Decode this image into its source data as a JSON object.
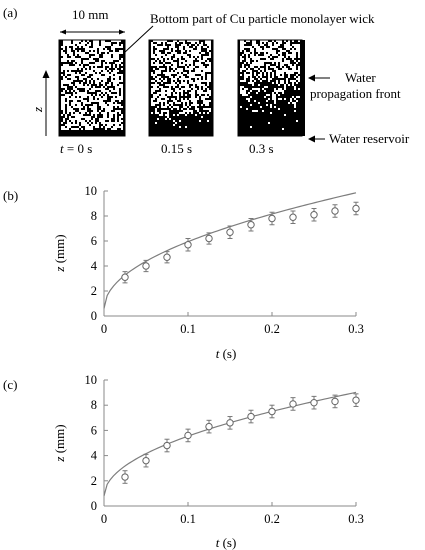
{
  "panel_a": {
    "label": "(a)",
    "scale_bar": "10 mm",
    "callout": "Bottom part of Cu particle monolayer wick",
    "z_axis": "z",
    "front_label_1": "Water",
    "front_label_2": "propagation front",
    "reservoir_label": "Water reservoir",
    "times": [
      {
        "t_italic": "t",
        "t_rest": " = 0 s",
        "fill": 0.0
      },
      {
        "t_italic": "",
        "t_rest": "0.15 s",
        "fill": 0.35
      },
      {
        "t_italic": "",
        "t_rest": "0.3 s",
        "fill": 0.62
      }
    ]
  },
  "chart_data": [
    {
      "panel_label": "(b)",
      "type": "scatter",
      "xlabel_var": "t",
      "xlabel_unit": " (s)",
      "ylabel_var": "z",
      "ylabel_unit": " (mm)",
      "xlim": [
        0,
        0.3
      ],
      "ylim": [
        0,
        10
      ],
      "xticks": [
        "0",
        "0.1",
        "0.2",
        "0.3"
      ],
      "yticks": [
        "0",
        "2",
        "4",
        "6",
        "8",
        "10"
      ],
      "x": [
        0.025,
        0.05,
        0.075,
        0.1,
        0.125,
        0.15,
        0.175,
        0.2,
        0.225,
        0.25,
        0.275,
        0.3
      ],
      "y": [
        3.1,
        4.0,
        4.7,
        5.7,
        6.2,
        6.7,
        7.3,
        7.8,
        7.9,
        8.1,
        8.4,
        8.6
      ],
      "err": [
        0.45,
        0.45,
        0.45,
        0.5,
        0.45,
        0.5,
        0.5,
        0.5,
        0.5,
        0.5,
        0.5,
        0.5
      ],
      "fit": {
        "form": "a*sqrt(t)",
        "a": 16.9,
        "y0": 0.6
      }
    },
    {
      "panel_label": "(c)",
      "type": "scatter",
      "xlabel_var": "t",
      "xlabel_unit": " (s)",
      "ylabel_var": "z",
      "ylabel_unit": " (mm)",
      "xlim": [
        0,
        0.3
      ],
      "ylim": [
        0,
        10
      ],
      "xticks": [
        "0",
        "0.1",
        "0.2",
        "0.3"
      ],
      "yticks": [
        "0",
        "2",
        "4",
        "6",
        "8",
        "10"
      ],
      "x": [
        0.025,
        0.05,
        0.075,
        0.1,
        0.125,
        0.15,
        0.175,
        0.2,
        0.225,
        0.25,
        0.275,
        0.3
      ],
      "y": [
        2.3,
        3.6,
        4.8,
        5.6,
        6.3,
        6.6,
        7.1,
        7.5,
        8.1,
        8.2,
        8.3,
        8.4
      ],
      "err": [
        0.5,
        0.5,
        0.5,
        0.5,
        0.5,
        0.5,
        0.5,
        0.5,
        0.5,
        0.5,
        0.5,
        0.5
      ],
      "fit": {
        "form": "a*sqrt(t)",
        "a": 15.0,
        "y0": 0.8
      }
    }
  ]
}
